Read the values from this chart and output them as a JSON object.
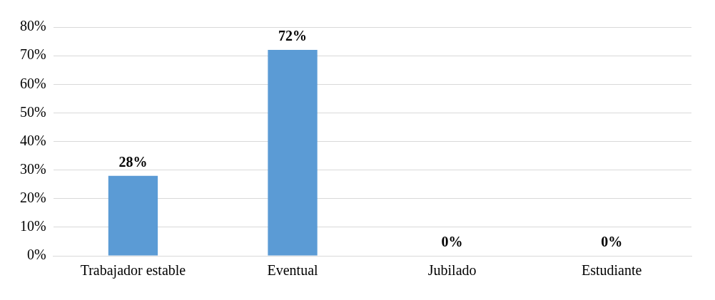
{
  "chart_data": {
    "type": "bar",
    "categories": [
      "Trabajador estable",
      "Eventual",
      "Jubilado",
      "Estudiante"
    ],
    "values": [
      28,
      72,
      0,
      0
    ],
    "color": "#5b9bd5",
    "value_labels": [
      "28%",
      "72%",
      "0%",
      "0%"
    ],
    "ylim": [
      0,
      80
    ],
    "yticks": [
      {
        "value": 0,
        "label": "0%"
      },
      {
        "value": 10,
        "label": "10%"
      },
      {
        "value": 20,
        "label": "20%"
      },
      {
        "value": 30,
        "label": "30%"
      },
      {
        "value": 40,
        "label": "40%"
      },
      {
        "value": 50,
        "label": "50%"
      },
      {
        "value": 60,
        "label": "60%"
      },
      {
        "value": 70,
        "label": "70%"
      },
      {
        "value": 80,
        "label": "80%"
      }
    ],
    "grid": "y",
    "legend": false
  }
}
